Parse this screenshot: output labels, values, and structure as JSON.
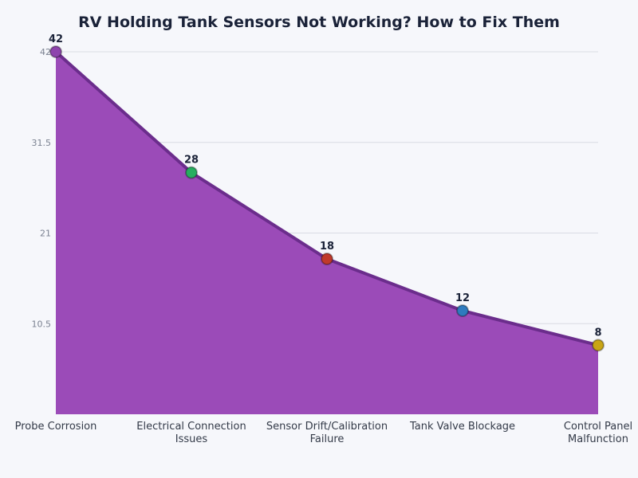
{
  "chart_data": {
    "type": "area",
    "title": "RV Holding Tank Sensors Not Working? How to Fix Them",
    "categories": [
      [
        "Probe Corrosion"
      ],
      [
        "Electrical Connection",
        "Issues"
      ],
      [
        "Sensor Drift/Calibration",
        "Failure"
      ],
      [
        "Tank Valve Blockage"
      ],
      [
        "Control Panel",
        "Malfunction"
      ]
    ],
    "values": [
      42,
      28,
      18,
      12,
      8
    ],
    "yticks": [
      10.5,
      21,
      31.5,
      42
    ],
    "ylim": [
      0,
      42
    ],
    "grid": true,
    "xlabel": "",
    "ylabel": "",
    "colors": {
      "fill": "#9b4bb8",
      "line": "#6b2d8c",
      "markers": [
        "#8e44ad",
        "#27ae60",
        "#c0392b",
        "#2e7bbf",
        "#c9a516"
      ],
      "text": "#1a2238",
      "tick": "#7a8190",
      "grid": "#d9dce3"
    }
  }
}
